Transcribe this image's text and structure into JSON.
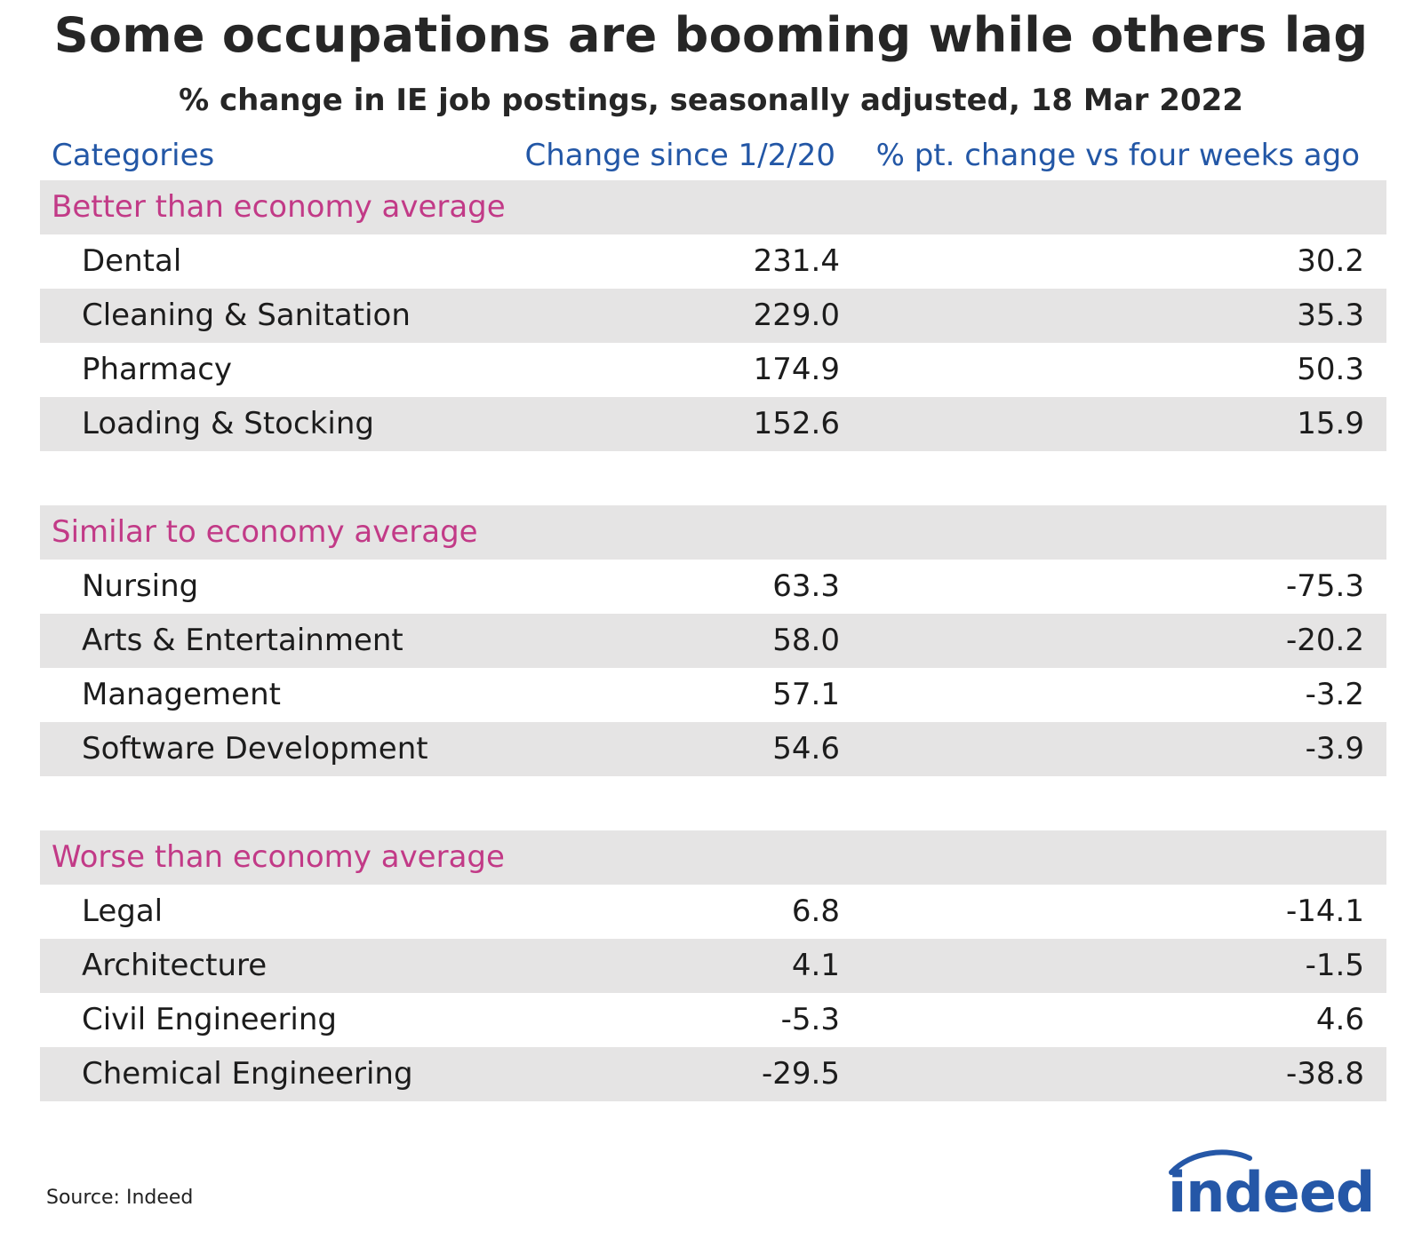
{
  "title": "Some occupations are booming while others lag",
  "subtitle": "% change in IE job postings, seasonally adjusted, 18 Mar 2022",
  "columns": {
    "category": "Categories",
    "change_since": "Change since 1/2/20",
    "pt_change": "% pt. change vs four weeks ago"
  },
  "groups": [
    {
      "name": "Better than economy average",
      "rows": [
        {
          "label": "Dental",
          "change": "231.4",
          "pt_change": "30.2"
        },
        {
          "label": "Cleaning & Sanitation",
          "change": "229.0",
          "pt_change": "35.3"
        },
        {
          "label": "Pharmacy",
          "change": "174.9",
          "pt_change": "50.3"
        },
        {
          "label": "Loading & Stocking",
          "change": "152.6",
          "pt_change": "15.9"
        }
      ]
    },
    {
      "name": "Similar to economy average",
      "rows": [
        {
          "label": "Nursing",
          "change": "63.3",
          "pt_change": "-75.3"
        },
        {
          "label": "Arts & Entertainment",
          "change": "58.0",
          "pt_change": "-20.2"
        },
        {
          "label": "Management",
          "change": "57.1",
          "pt_change": "-3.2"
        },
        {
          "label": "Software Development",
          "change": "54.6",
          "pt_change": "-3.9"
        }
      ]
    },
    {
      "name": "Worse than economy average",
      "rows": [
        {
          "label": "Legal",
          "change": "6.8",
          "pt_change": "-14.1"
        },
        {
          "label": "Architecture",
          "change": "4.1",
          "pt_change": "-1.5"
        },
        {
          "label": "Civil Engineering",
          "change": "-5.3",
          "pt_change": "4.6"
        },
        {
          "label": "Chemical Engineering",
          "change": "-29.5",
          "pt_change": "-38.8"
        }
      ]
    }
  ],
  "source": "Source: Indeed",
  "logo_text": "indeed",
  "colors": {
    "header_blue": "#2357a6",
    "group_pink": "#c23a87",
    "shade": "#e5e4e4",
    "logo_blue": "#2557a7"
  },
  "chart_data": {
    "type": "table",
    "title": "Some occupations are booming while others lag",
    "subtitle": "% change in IE job postings, seasonally adjusted, 18 Mar 2022",
    "columns": [
      "Categories",
      "Change since 1/2/20",
      "% pt. change vs four weeks ago"
    ],
    "groups": [
      "Better than economy average",
      "Similar to economy average",
      "Worse than economy average"
    ],
    "categories": [
      "Dental",
      "Cleaning & Sanitation",
      "Pharmacy",
      "Loading & Stocking",
      "Nursing",
      "Arts & Entertainment",
      "Management",
      "Software Development",
      "Legal",
      "Architecture",
      "Civil Engineering",
      "Chemical Engineering"
    ],
    "series": [
      {
        "name": "Change since 1/2/20",
        "values": [
          231.4,
          229.0,
          174.9,
          152.6,
          63.3,
          58.0,
          57.1,
          54.6,
          6.8,
          4.1,
          -5.3,
          -29.5
        ]
      },
      {
        "name": "% pt. change vs four weeks ago",
        "values": [
          30.2,
          35.3,
          50.3,
          15.9,
          -75.3,
          -20.2,
          -3.2,
          -3.9,
          -14.1,
          -1.5,
          4.6,
          -38.8
        ]
      }
    ]
  }
}
